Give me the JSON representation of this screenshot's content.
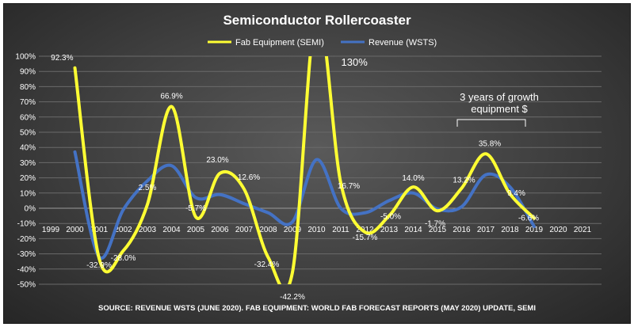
{
  "chart_data": {
    "type": "line",
    "title": "Semiconductor Rollercoaster",
    "categories": [
      "1999",
      "2000",
      "2001",
      "2002",
      "2003",
      "2004",
      "2005",
      "2006",
      "2007",
      "2008",
      "2009",
      "2010",
      "2011",
      "2012",
      "2013",
      "2014",
      "2015",
      "2016",
      "2017",
      "2018",
      "2019",
      "2020",
      "2021"
    ],
    "ylim": [
      -50,
      100
    ],
    "ytick_labels": [
      "100%",
      "90%",
      "80%",
      "70%",
      "60%",
      "50%",
      "40%",
      "30%",
      "20%",
      "10%",
      "0%",
      "-10%",
      "-20%",
      "-30%",
      "-40%",
      "-50%"
    ],
    "grid": true,
    "legend_position": "top",
    "series": [
      {
        "name": "Fab Equipment (SEMI)",
        "color": "#ffff33",
        "values": [
          null,
          92.3,
          -32.9,
          -28.0,
          2.5,
          66.9,
          -5.7,
          23.0,
          12.6,
          -32.4,
          -42.2,
          130,
          16.7,
          -15.7,
          -5.0,
          14.0,
          -1.7,
          13.2,
          35.8,
          9.4,
          -6.6,
          null,
          null
        ],
        "data_labels": [
          {
            "x": "2000",
            "text": "92.3%"
          },
          {
            "x": "2001",
            "text": "-32.9%"
          },
          {
            "x": "2002",
            "text": "-28.0%"
          },
          {
            "x": "2003",
            "text": "2.5%"
          },
          {
            "x": "2004",
            "text": "66.9%"
          },
          {
            "x": "2005",
            "text": "-5.7%"
          },
          {
            "x": "2006",
            "text": "23.0%"
          },
          {
            "x": "2007",
            "text": "12.6%"
          },
          {
            "x": "2008",
            "text": "-32.4%"
          },
          {
            "x": "2009",
            "text": "-42.2%"
          },
          {
            "x": "2010",
            "text": "130%"
          },
          {
            "x": "2011",
            "text": "16.7%"
          },
          {
            "x": "2012",
            "text": "-15.7%"
          },
          {
            "x": "2013",
            "text": "-5.0%"
          },
          {
            "x": "2014",
            "text": "14.0%"
          },
          {
            "x": "2015",
            "text": "-1.7%"
          },
          {
            "x": "2016",
            "text": "13.2%"
          },
          {
            "x": "2017",
            "text": "35.8%"
          },
          {
            "x": "2018",
            "text": "9.4%"
          },
          {
            "x": "2019",
            "text": "-6.6%"
          }
        ]
      },
      {
        "name": "Revenue (WSTS)",
        "color": "#4472c4",
        "values": [
          null,
          37,
          -32,
          -1,
          18,
          28,
          7,
          9,
          3,
          -3,
          -9,
          32,
          0,
          -3,
          5,
          10,
          -0.5,
          1,
          22,
          14,
          -12,
          null,
          null
        ]
      }
    ],
    "annotations": [
      {
        "text_line1": "3 years of growth",
        "text_line2": "equipment $",
        "from": "2016",
        "to": "2018"
      }
    ],
    "source": "SOURCE: REVENUE WSTS (JUNE 2020).  FAB EQUIPMENT: WORLD FAB FORECAST REPORTS (MAY 2020) UPDATE, SEMI"
  }
}
